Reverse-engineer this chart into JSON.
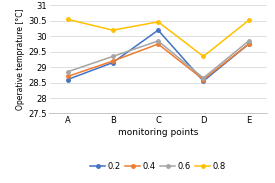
{
  "x_labels": [
    "A",
    "B",
    "C",
    "D",
    "E"
  ],
  "series_order": [
    "0.2",
    "0.4",
    "0.6",
    "0.8"
  ],
  "series": {
    "0.2": [
      28.6,
      29.15,
      30.2,
      28.55,
      29.75
    ],
    "0.4": [
      28.7,
      29.2,
      29.75,
      28.6,
      29.75
    ],
    "0.6": [
      28.85,
      29.35,
      29.85,
      28.65,
      29.85
    ],
    "0.8": [
      30.55,
      30.2,
      30.47,
      29.35,
      30.52
    ]
  },
  "colors": {
    "0.2": "#4472C4",
    "0.4": "#ED7D31",
    "0.6": "#A5A5A5",
    "0.8": "#FFC000"
  },
  "ylabel": "Operative temprature [°C]",
  "xlabel": "monitoring points",
  "ylim": [
    27.5,
    31.0
  ],
  "yticks": [
    27.5,
    28.0,
    28.5,
    29.0,
    29.5,
    30.0,
    30.5,
    31.0
  ],
  "ytick_labels": [
    "27.5",
    "28",
    "28.5",
    "29",
    "29.5",
    "30",
    "30.5",
    "31"
  ],
  "background_color": "#ffffff",
  "grid_color": "#d9d9d9"
}
